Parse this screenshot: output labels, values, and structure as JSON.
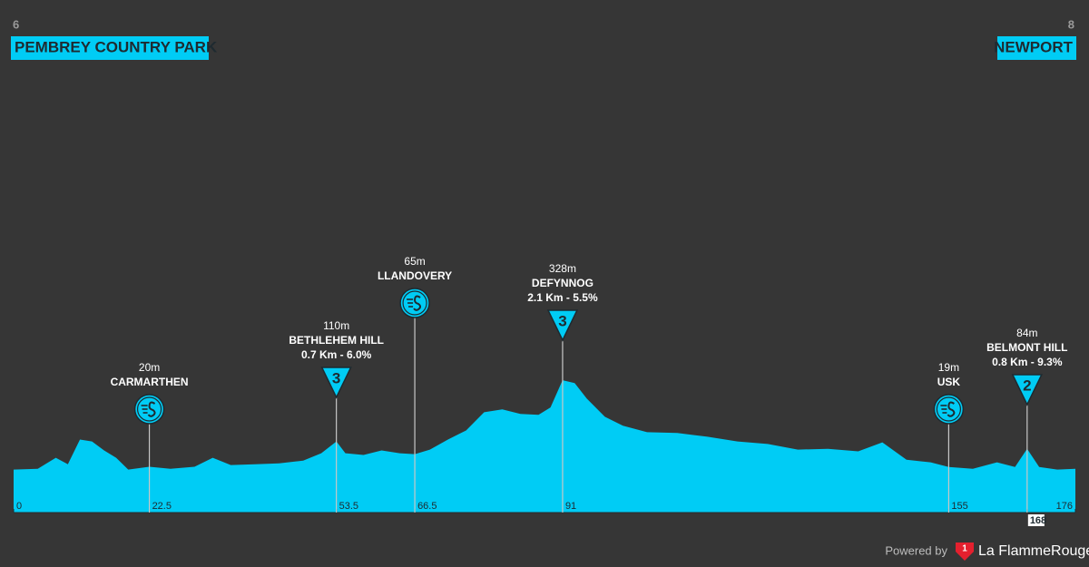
{
  "chart_data": {
    "type": "area",
    "start": {
      "marker": 6,
      "label": "PEMBREY COUNTRY PARK"
    },
    "finish": {
      "marker": 8,
      "label": "NEWPORT"
    },
    "color": "#00ccf5",
    "x": [
      0,
      4,
      7,
      9,
      11,
      13,
      15,
      17,
      19,
      22.5,
      26,
      30,
      33,
      36,
      40,
      44,
      48,
      51,
      53.5,
      55,
      58,
      61,
      64,
      66.5,
      69,
      72,
      75,
      78,
      81,
      84,
      87,
      89,
      91,
      93,
      95,
      98,
      101,
      105,
      110,
      115,
      120,
      125,
      130,
      135,
      140,
      144,
      148,
      152,
      155,
      159,
      163,
      166,
      168,
      170,
      173,
      176
    ],
    "values": [
      10,
      13,
      52,
      29,
      117,
      110,
      78,
      52,
      10,
      20,
      13,
      20,
      52,
      26,
      29,
      32,
      42,
      68,
      110,
      68,
      62,
      78,
      68,
      65,
      81,
      117,
      149,
      214,
      224,
      208,
      205,
      231,
      328,
      318,
      263,
      198,
      166,
      143,
      140,
      127,
      110,
      101,
      81,
      84,
      75,
      107,
      45,
      36,
      19,
      13,
      36,
      19,
      84,
      19,
      10,
      13
    ],
    "xlim": [
      0,
      176
    ],
    "ylim": [
      -143,
      1300
    ],
    "xticks": [
      0,
      22.5,
      53.5,
      66.5,
      91,
      155,
      168,
      176
    ],
    "waypoints": [
      {
        "km": 22.5,
        "elevation": 20,
        "elevation_label": "20m",
        "name": "CARMARTHEN",
        "kind": "sprint"
      },
      {
        "km": 53.5,
        "elevation": 110,
        "elevation_label": "110m",
        "name": "BETHLEHEM HILL",
        "detail": "0.7 Km - 6.0%",
        "kind": "climb",
        "category": 3
      },
      {
        "km": 66.5,
        "elevation": 65,
        "elevation_label": "65m",
        "name": "LLANDOVERY",
        "kind": "sprint"
      },
      {
        "km": 91,
        "elevation": 328,
        "elevation_label": "328m",
        "name": "DEFYNNOG",
        "detail": "2.1 Km - 5.5%",
        "kind": "climb",
        "category": 3
      },
      {
        "km": 155,
        "elevation": 19,
        "elevation_label": "19m",
        "name": "USK",
        "kind": "sprint"
      },
      {
        "km": 168,
        "elevation": 84,
        "elevation_label": "84m",
        "name": "BELMONT HILL",
        "detail": "0.8 Km - 9.3%",
        "kind": "climb",
        "category": 2
      }
    ]
  },
  "footer": {
    "powered_by": "Powered by",
    "badge": "1",
    "brand": "La FlammeRouge"
  }
}
